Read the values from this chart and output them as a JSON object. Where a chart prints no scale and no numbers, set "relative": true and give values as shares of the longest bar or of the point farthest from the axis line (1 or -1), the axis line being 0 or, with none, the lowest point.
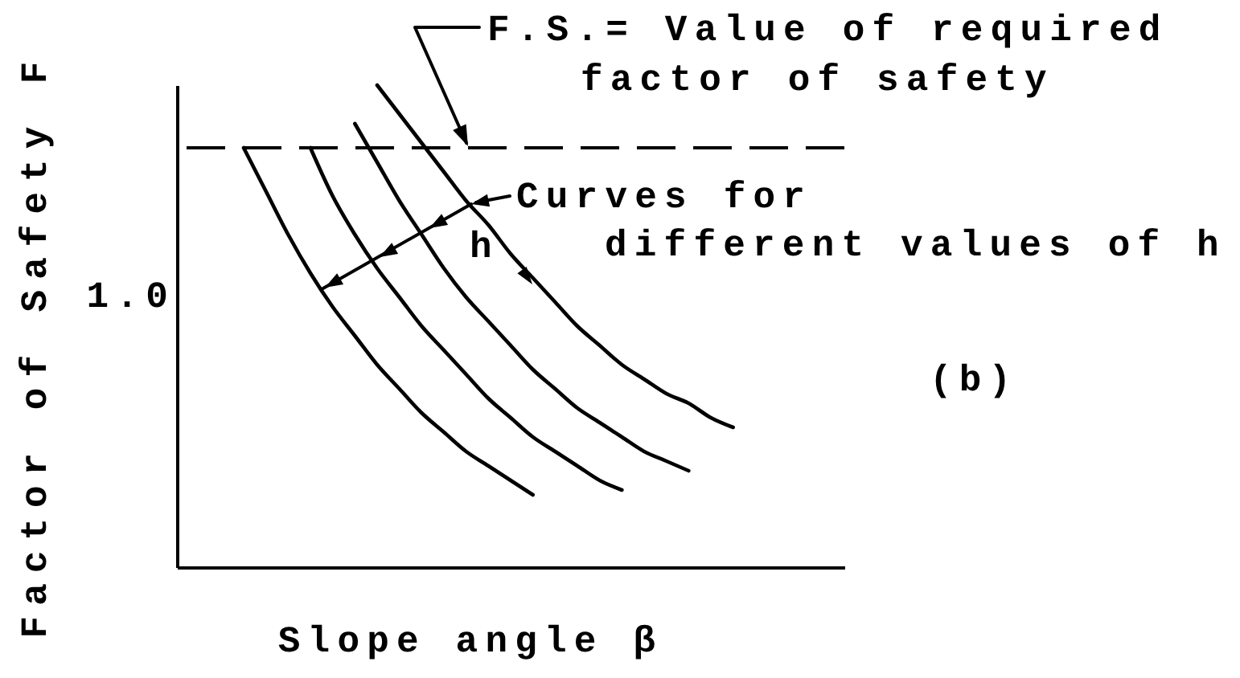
{
  "chart_data": {
    "type": "line",
    "xlabel": "Slope angle β",
    "ylabel": "Factor of Safety F",
    "relative": true,
    "categories": [
      null,
      null,
      null,
      null,
      null,
      null,
      null,
      null,
      null,
      null,
      null,
      null,
      null,
      null,
      null,
      null,
      null,
      null,
      null,
      null,
      null,
      null,
      null,
      null,
      null,
      null,
      null,
      null,
      null,
      null,
      null
    ],
    "series": [
      {
        "color": "#000000",
        "values": [
          null,
          null,
          null,
          0.87,
          0.78,
          0.69,
          0.61,
          0.54,
          0.48,
          0.42,
          0.37,
          0.32,
          0.28,
          0.24,
          0.21,
          0.18,
          0.15,
          null,
          null,
          null,
          null,
          null,
          null,
          null,
          null,
          null,
          null,
          null,
          null,
          null,
          null
        ]
      },
      {
        "color": "#000000",
        "values": [
          null,
          null,
          null,
          null,
          null,
          null,
          0.87,
          0.77,
          0.69,
          0.62,
          0.56,
          0.5,
          0.45,
          0.4,
          0.35,
          0.31,
          0.27,
          0.24,
          0.21,
          0.18,
          0.16,
          null,
          null,
          null,
          null,
          null,
          null,
          null,
          null,
          null,
          null
        ]
      },
      {
        "color": "#000000",
        "values": [
          null,
          null,
          null,
          null,
          null,
          null,
          null,
          null,
          0.92,
          0.84,
          0.76,
          0.69,
          0.62,
          0.56,
          0.51,
          0.46,
          0.41,
          0.37,
          0.33,
          0.3,
          0.27,
          0.24,
          0.22,
          0.2,
          null,
          null,
          null,
          null,
          null,
          null,
          null
        ]
      },
      {
        "color": "#000000",
        "values": [
          null,
          null,
          null,
          null,
          null,
          null,
          null,
          null,
          null,
          1,
          0.94,
          0.88,
          0.82,
          0.76,
          0.71,
          0.65,
          0.6,
          0.55,
          0.5,
          0.46,
          0.42,
          0.39,
          0.36,
          0.34,
          0.31,
          0.29,
          null,
          null,
          null,
          null,
          null
        ]
      }
    ],
    "ref_lines": [
      {
        "axis": "y",
        "value": 0.87,
        "label": "F.S.= Value of required\nfactor of safety",
        "line_style": "dashed",
        "color": "#000000"
      }
    ],
    "annotations": [
      "1.0",
      "Curves for\ndifferent values of h",
      "h",
      "(b)"
    ]
  }
}
